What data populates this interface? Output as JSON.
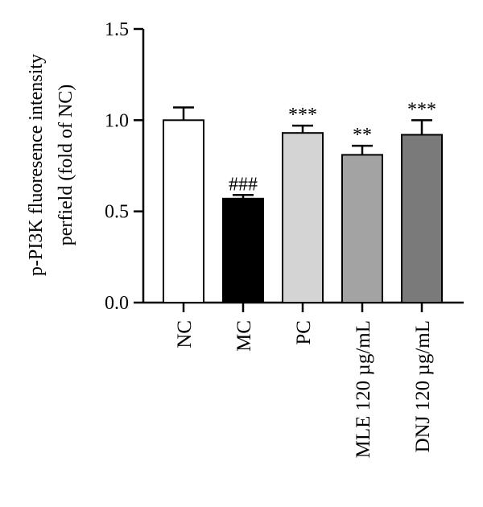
{
  "chart_data": {
    "type": "bar",
    "ylabel_lines": [
      "p-PI3K fluoresence intensity",
      "perfield (fold of NC)"
    ],
    "ylim": [
      0,
      1.5
    ],
    "yticks": [
      "0.0",
      "0.5",
      "1.0",
      "1.5"
    ],
    "ytick_values": [
      0,
      0.5,
      1.0,
      1.5
    ],
    "categories": [
      "NC",
      "MC",
      "PC",
      "MLE 120 µg/mL",
      "DNJ 120 µg/mL"
    ],
    "values": [
      1.0,
      0.57,
      0.93,
      0.81,
      0.92
    ],
    "errors": [
      0.07,
      0.02,
      0.04,
      0.05,
      0.08
    ],
    "colors": [
      "#ffffff",
      "#000000",
      "#d4d4d4",
      "#a3a3a3",
      "#7a7a7a"
    ],
    "annotations": [
      "",
      "###",
      "***",
      "**",
      "***"
    ],
    "grid": false,
    "legend": "none"
  }
}
